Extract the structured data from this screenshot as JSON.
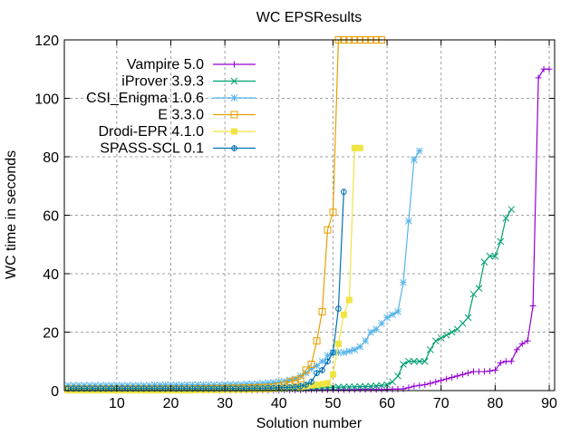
{
  "chart_data": {
    "type": "line",
    "title": "WC EPSResults",
    "xlabel": "Solution number",
    "ylabel": "WC time in seconds",
    "xlim": [
      0.3,
      91
    ],
    "ylim": [
      0,
      120
    ],
    "xticks": [
      10,
      20,
      30,
      40,
      50,
      60,
      70,
      80,
      90
    ],
    "yticks": [
      0,
      20,
      40,
      60,
      80,
      100,
      120
    ],
    "grid": true,
    "legend_position": "top-left",
    "series": [
      {
        "name": "Vampire 5.0",
        "color": "#9400d3",
        "marker": "plus",
        "x": [
          1,
          2,
          3,
          4,
          5,
          6,
          7,
          8,
          9,
          10,
          11,
          12,
          13,
          14,
          15,
          16,
          17,
          18,
          19,
          20,
          21,
          22,
          23,
          24,
          25,
          26,
          27,
          28,
          29,
          30,
          31,
          32,
          33,
          34,
          35,
          36,
          37,
          38,
          39,
          40,
          41,
          42,
          43,
          44,
          45,
          46,
          47,
          48,
          49,
          50,
          51,
          52,
          53,
          54,
          55,
          56,
          57,
          58,
          59,
          60,
          61,
          62,
          63,
          64,
          65,
          66,
          67,
          68,
          69,
          70,
          71,
          72,
          73,
          74,
          75,
          76,
          77,
          78,
          79,
          80,
          81,
          82,
          83,
          84,
          85,
          86,
          87,
          88,
          89,
          90
        ],
        "y": [
          0.1,
          0.1,
          0.1,
          0.1,
          0.1,
          0.1,
          0.1,
          0.1,
          0.1,
          0.1,
          0.1,
          0.1,
          0.1,
          0.1,
          0.1,
          0.1,
          0.1,
          0.1,
          0.1,
          0.1,
          0.1,
          0.1,
          0.1,
          0.1,
          0.1,
          0.1,
          0.1,
          0.1,
          0.1,
          0.1,
          0.1,
          0.1,
          0.1,
          0.1,
          0.1,
          0.1,
          0.1,
          0.1,
          0.1,
          0.1,
          0.2,
          0.2,
          0.2,
          0.2,
          0.2,
          0.3,
          0.3,
          0.3,
          0.3,
          0.3,
          0.3,
          0.3,
          0.3,
          0.3,
          0.4,
          0.4,
          0.4,
          0.4,
          0.4,
          0.4,
          0.5,
          0.5,
          0.6,
          1.0,
          1.5,
          1.8,
          2.0,
          2.5,
          3.0,
          3.5,
          4.0,
          4.5,
          5.0,
          5.5,
          6.0,
          6.5,
          6.5,
          6.5,
          6.7,
          7.0,
          9.5,
          10,
          10,
          14,
          16,
          17,
          29,
          107,
          110,
          110
        ]
      },
      {
        "name": "iProver 3.9.3",
        "color": "#009e73",
        "marker": "cross",
        "x": [
          1,
          2,
          3,
          4,
          5,
          6,
          7,
          8,
          9,
          10,
          11,
          12,
          13,
          14,
          15,
          16,
          17,
          18,
          19,
          20,
          21,
          22,
          23,
          24,
          25,
          26,
          27,
          28,
          29,
          30,
          31,
          32,
          33,
          34,
          35,
          36,
          37,
          38,
          39,
          40,
          41,
          42,
          43,
          44,
          45,
          46,
          47,
          48,
          49,
          50,
          51,
          52,
          53,
          54,
          55,
          56,
          57,
          58,
          59,
          60,
          61,
          62,
          63,
          64,
          65,
          66,
          67,
          68,
          69,
          70,
          71,
          72,
          73,
          74,
          75,
          76,
          77,
          78,
          79,
          80,
          81,
          82,
          83
        ],
        "y": [
          0.5,
          0.5,
          0.5,
          0.5,
          0.5,
          0.5,
          0.5,
          0.5,
          0.5,
          0.5,
          0.5,
          0.5,
          0.5,
          0.5,
          0.5,
          0.5,
          0.5,
          0.5,
          0.5,
          0.5,
          0.5,
          0.5,
          0.5,
          0.5,
          0.5,
          0.5,
          0.5,
          0.5,
          0.5,
          0.5,
          0.5,
          0.5,
          0.5,
          0.5,
          0.5,
          0.5,
          0.5,
          0.5,
          0.5,
          0.5,
          0.6,
          0.6,
          0.6,
          0.6,
          0.7,
          0.8,
          0.9,
          1.0,
          1.0,
          1.1,
          1.2,
          1.2,
          1.3,
          1.3,
          1.4,
          1.4,
          1.5,
          1.6,
          1.8,
          2.0,
          3.0,
          5.0,
          9.0,
          10,
          10,
          10,
          10,
          14,
          17,
          18,
          19,
          20,
          21,
          23,
          25,
          33,
          35,
          44,
          46,
          46,
          51,
          59,
          62
        ]
      },
      {
        "name": "CSI_Enigma 1.0.6",
        "color": "#56b4e9",
        "marker": "star",
        "x": [
          1,
          2,
          3,
          4,
          5,
          6,
          7,
          8,
          9,
          10,
          11,
          12,
          13,
          14,
          15,
          16,
          17,
          18,
          19,
          20,
          21,
          22,
          23,
          24,
          25,
          26,
          27,
          28,
          29,
          30,
          31,
          32,
          33,
          34,
          35,
          36,
          37,
          38,
          39,
          40,
          41,
          42,
          43,
          44,
          45,
          46,
          47,
          48,
          49,
          50,
          51,
          52,
          53,
          54,
          55,
          56,
          57,
          58,
          59,
          60,
          61,
          62,
          63,
          64,
          65,
          66
        ],
        "y": [
          1.8,
          1.8,
          1.8,
          1.8,
          1.8,
          1.8,
          1.8,
          1.8,
          1.8,
          1.8,
          1.8,
          1.8,
          1.8,
          1.8,
          1.8,
          1.8,
          1.9,
          1.9,
          1.9,
          1.9,
          1.9,
          1.9,
          2.0,
          2.0,
          2.0,
          2.0,
          2.0,
          2.0,
          2.0,
          2.1,
          2.1,
          2.1,
          2.1,
          2.2,
          2.2,
          2.3,
          2.5,
          2.6,
          2.8,
          3.0,
          3.2,
          3.6,
          4.0,
          5.0,
          6.0,
          7.5,
          8.5,
          10,
          12,
          13,
          13,
          13,
          13.5,
          14,
          15,
          17,
          20,
          21,
          23,
          25,
          26,
          27,
          37,
          58,
          79,
          82
        ]
      },
      {
        "name": "E 3.3.0",
        "color": "#e69f00",
        "marker": "square-open",
        "x": [
          1,
          2,
          3,
          4,
          5,
          6,
          7,
          8,
          9,
          10,
          11,
          12,
          13,
          14,
          15,
          16,
          17,
          18,
          19,
          20,
          21,
          22,
          23,
          24,
          25,
          26,
          27,
          28,
          29,
          30,
          31,
          32,
          33,
          34,
          35,
          36,
          37,
          38,
          39,
          40,
          41,
          42,
          43,
          44,
          45,
          46,
          47,
          48,
          49,
          50,
          51,
          52,
          53,
          54,
          55,
          56,
          57,
          58,
          59
        ],
        "y": [
          0.5,
          0.5,
          0.5,
          0.5,
          0.5,
          0.5,
          0.5,
          0.5,
          0.5,
          0.5,
          0.5,
          0.5,
          0.5,
          0.5,
          0.5,
          0.5,
          0.5,
          0.5,
          0.5,
          0.5,
          0.5,
          0.5,
          0.5,
          0.5,
          0.6,
          0.6,
          0.6,
          0.7,
          0.7,
          0.7,
          0.8,
          0.8,
          0.8,
          0.9,
          0.9,
          1.0,
          1.0,
          1.1,
          1.2,
          1.5,
          2.0,
          3.0,
          3.5,
          4.0,
          7.0,
          9.0,
          17,
          27,
          55,
          61,
          120,
          120,
          120,
          120,
          120,
          120,
          120,
          120,
          120
        ]
      },
      {
        "name": "Drodi-EPR 4.1.0",
        "color": "#f0e442",
        "marker": "square-filled",
        "x": [
          1,
          2,
          3,
          4,
          5,
          6,
          7,
          8,
          9,
          10,
          11,
          12,
          13,
          14,
          15,
          16,
          17,
          18,
          19,
          20,
          21,
          22,
          23,
          24,
          25,
          26,
          27,
          28,
          29,
          30,
          31,
          32,
          33,
          34,
          35,
          36,
          37,
          38,
          39,
          40,
          41,
          42,
          43,
          44,
          45,
          46,
          47,
          48,
          49,
          50,
          51,
          52,
          53,
          54,
          55
        ],
        "y": [
          0.1,
          0.1,
          0.1,
          0.1,
          0.1,
          0.1,
          0.1,
          0.1,
          0.1,
          0.1,
          0.1,
          0.1,
          0.1,
          0.1,
          0.1,
          0.1,
          0.1,
          0.1,
          0.1,
          0.1,
          0.1,
          0.1,
          0.1,
          0.1,
          0.2,
          0.2,
          0.2,
          0.2,
          0.2,
          0.3,
          0.3,
          0.3,
          0.3,
          0.3,
          0.4,
          0.4,
          0.5,
          0.5,
          0.6,
          0.7,
          0.8,
          0.9,
          1.0,
          1.2,
          1.5,
          1.8,
          2.0,
          2.2,
          2.5,
          5.5,
          16,
          26,
          31,
          83,
          83
        ]
      },
      {
        "name": "SPASS-SCL 0.1",
        "color": "#0072b2",
        "marker": "circle-cross",
        "x": [
          1,
          2,
          3,
          4,
          5,
          6,
          7,
          8,
          9,
          10,
          11,
          12,
          13,
          14,
          15,
          16,
          17,
          18,
          19,
          20,
          21,
          22,
          23,
          24,
          25,
          26,
          27,
          28,
          29,
          30,
          31,
          32,
          33,
          34,
          35,
          36,
          37,
          38,
          39,
          40,
          41,
          42,
          43,
          44,
          45,
          46,
          47,
          48,
          49,
          50,
          51,
          52
        ],
        "y": [
          0.7,
          0.7,
          0.7,
          0.7,
          0.7,
          0.7,
          0.7,
          0.7,
          0.7,
          0.7,
          0.7,
          0.7,
          0.7,
          0.7,
          0.7,
          0.7,
          0.7,
          0.7,
          0.7,
          0.7,
          0.7,
          0.7,
          0.7,
          0.7,
          0.7,
          0.7,
          0.7,
          0.7,
          0.7,
          0.7,
          0.7,
          0.7,
          0.7,
          0.7,
          0.8,
          0.8,
          0.8,
          0.9,
          0.9,
          1.0,
          1.0,
          1.1,
          1.2,
          1.5,
          2.0,
          3.0,
          6.0,
          7.0,
          10,
          13,
          28,
          68
        ]
      }
    ]
  }
}
